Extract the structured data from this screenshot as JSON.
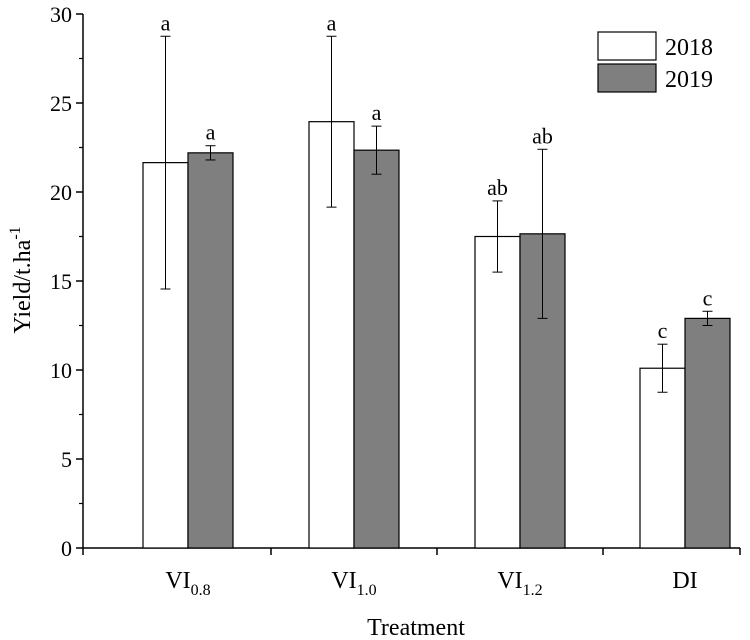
{
  "chart_data": {
    "type": "bar",
    "categories": [
      {
        "base": "VI",
        "sub": "0.8"
      },
      {
        "base": "VI",
        "sub": "1.0"
      },
      {
        "base": "VI",
        "sub": "1.2"
      },
      {
        "base": "DI",
        "sub": ""
      }
    ],
    "series": [
      {
        "name": "2018",
        "color": "#ffffff",
        "values": [
          21.65,
          23.95,
          17.5,
          10.1
        ],
        "error": [
          7.1,
          4.8,
          2.0,
          1.35
        ],
        "letters": [
          "a",
          "a",
          "ab",
          "c"
        ]
      },
      {
        "name": "2019",
        "color": "#7f7f7f",
        "values": [
          22.2,
          22.35,
          17.65,
          12.9
        ],
        "error": [
          0.4,
          1.35,
          4.75,
          0.4
        ],
        "letters": [
          "a",
          "a",
          "ab",
          "c"
        ]
      }
    ],
    "xlabel": "Treatment",
    "ylabel": {
      "base": "Yield/t.ha",
      "sup": "-1"
    },
    "ylim": [
      0,
      30
    ],
    "yticks": [
      0,
      5,
      10,
      15,
      20,
      25,
      30
    ],
    "grid": false,
    "legend": "top-right"
  }
}
